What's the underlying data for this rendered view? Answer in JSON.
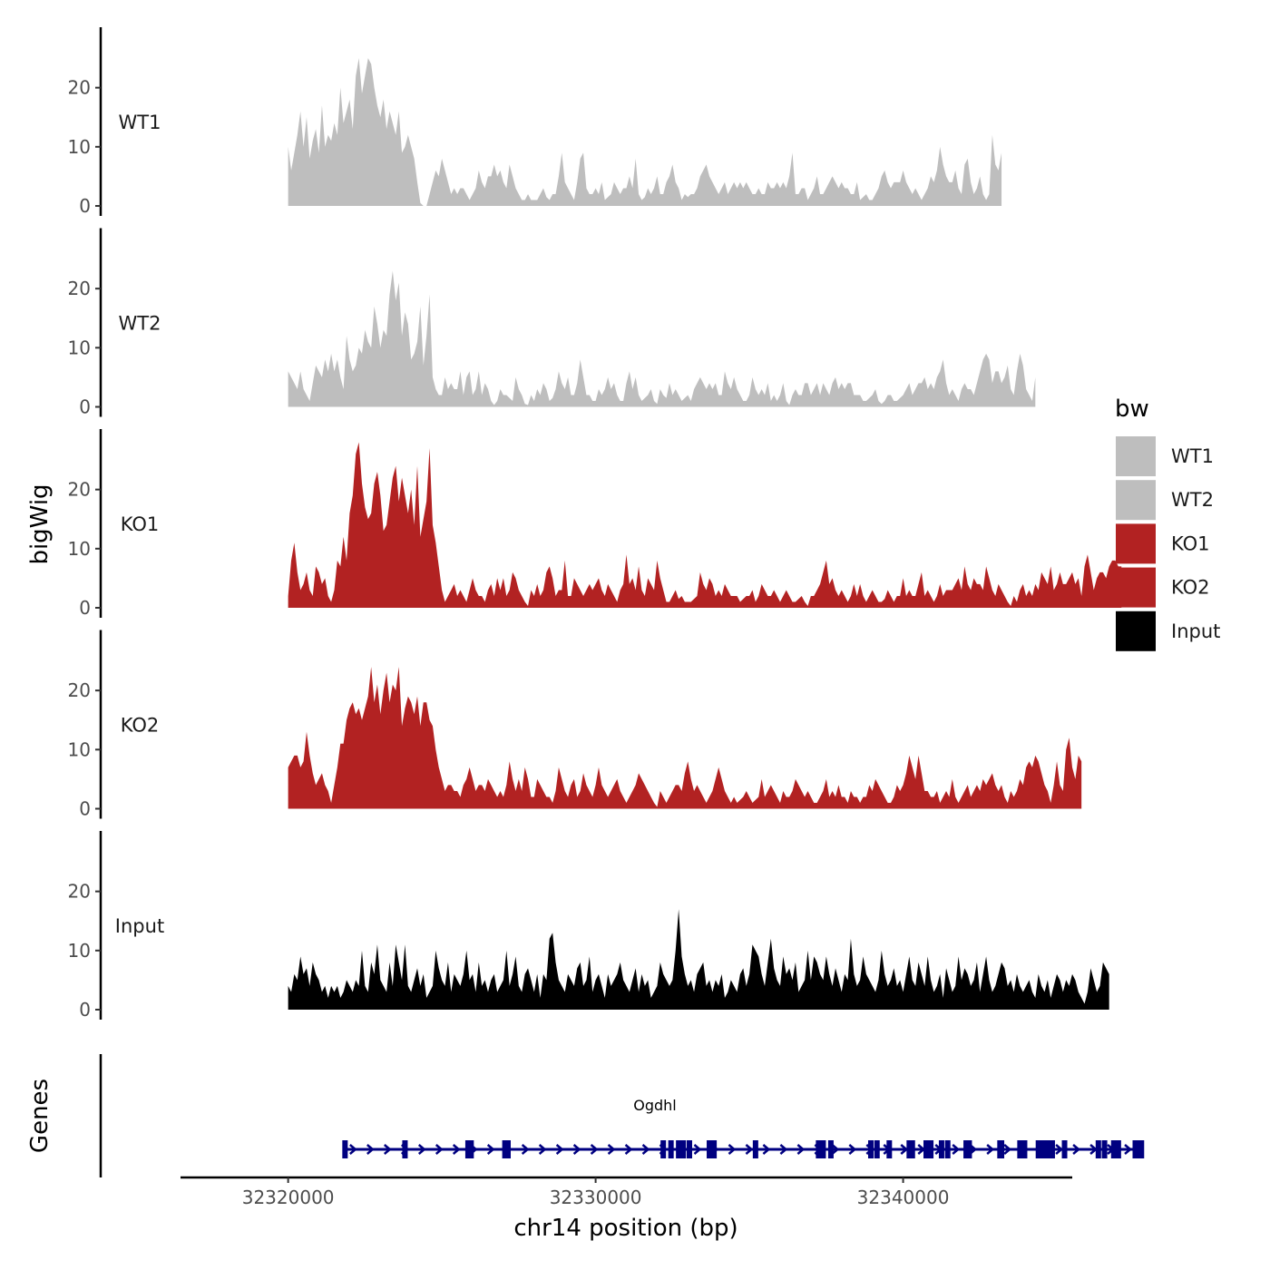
{
  "chart_data": {
    "type": "area",
    "xlabel": "chr14 position (bp)",
    "ylabel": "bigWig",
    "genes_label": "Genes",
    "xlim": [
      32316500,
      32345500
    ],
    "x_ticks": [
      32320000,
      32330000,
      32340000
    ],
    "x_tick_labels": [
      "32320000",
      "32330000",
      "32340000"
    ],
    "ylim": [
      0,
      29
    ],
    "y_ticks": [
      0,
      10,
      20
    ],
    "y_tick_labels": [
      "0",
      "10",
      "20"
    ],
    "series_x_start": 32320000,
    "series_x_step": 100,
    "legend": {
      "title": "bw",
      "items": [
        {
          "label": "WT1",
          "color": "#bebebe"
        },
        {
          "label": "WT2",
          "color": "#bebebe"
        },
        {
          "label": "KO1",
          "color": "#b22222"
        },
        {
          "label": "KO2",
          "color": "#b22222"
        },
        {
          "label": "Input",
          "color": "#000000"
        }
      ]
    },
    "series": [
      {
        "name": "WT1",
        "color": "#bebebe",
        "values": [
          10,
          6,
          9,
          12,
          16,
          10,
          15,
          8,
          11,
          13,
          9,
          17,
          10,
          12,
          11,
          14,
          12,
          20,
          14,
          16,
          18,
          13,
          22,
          25,
          19,
          22,
          25,
          24,
          20,
          17,
          15,
          18,
          13,
          16,
          14,
          12,
          16,
          9,
          10,
          12,
          10,
          8,
          4,
          0.5,
          0,
          0,
          2,
          4,
          6,
          5,
          8,
          6,
          4,
          2,
          3,
          2,
          3,
          3,
          2,
          1,
          2,
          3,
          6,
          4,
          3,
          5,
          5,
          7,
          5,
          6,
          4,
          3,
          7,
          5,
          3,
          2,
          1,
          1,
          2,
          1,
          1,
          1,
          2,
          3,
          1.5,
          1,
          2,
          2,
          5,
          9,
          4,
          3,
          2,
          1,
          4,
          8,
          9,
          3,
          2,
          2,
          3,
          2,
          4,
          1,
          1.5,
          2,
          4,
          3,
          2,
          3,
          3,
          5,
          3,
          8,
          2,
          1,
          1.5,
          3,
          2,
          3,
          5,
          2,
          2,
          4,
          5,
          7,
          4,
          3,
          1,
          2,
          1.5,
          2,
          2,
          3,
          5,
          6,
          7,
          5,
          4,
          3,
          2,
          3,
          4,
          2,
          3,
          4,
          3,
          4,
          3,
          4,
          3,
          2,
          2,
          3,
          2,
          2,
          4,
          3,
          3,
          4,
          3,
          4,
          3,
          5,
          9,
          2,
          2,
          3,
          3,
          1,
          2,
          3,
          5,
          2,
          2,
          3,
          4,
          5,
          4,
          3,
          4,
          3,
          3,
          2,
          2,
          4,
          1,
          1.5,
          2,
          1,
          1,
          2,
          3,
          5,
          6,
          4,
          3,
          4,
          4,
          4,
          6,
          4,
          3,
          2,
          3,
          2,
          1,
          2,
          3,
          5,
          4,
          6,
          10,
          7,
          5,
          4,
          4,
          6,
          3,
          2,
          7,
          8,
          4,
          2,
          3,
          5,
          2,
          1,
          2,
          12,
          7,
          6,
          9
        ]
      },
      {
        "name": "WT2",
        "color": "#bebebe",
        "values": [
          6,
          5,
          4,
          3,
          6,
          3,
          2,
          1,
          4,
          7,
          6,
          5,
          8,
          6,
          9,
          6,
          8,
          5,
          3,
          12,
          8,
          6,
          7,
          10,
          9,
          13,
          11,
          10,
          17,
          14,
          10,
          13,
          12,
          19,
          23,
          18,
          21,
          12,
          16,
          14,
          8,
          9,
          11,
          17,
          7,
          12,
          19,
          5,
          3,
          2,
          2,
          5,
          3,
          4,
          3,
          3,
          6,
          2,
          5,
          6,
          2,
          3,
          6,
          2,
          4,
          3,
          1,
          0.3,
          1,
          3,
          2,
          2,
          1.5,
          1,
          5,
          3,
          2,
          0.5,
          0.3,
          2,
          1,
          3,
          2,
          4,
          3,
          1,
          1.5,
          3,
          6,
          4,
          3,
          5,
          2,
          2,
          4,
          8,
          5,
          2,
          2,
          1,
          1,
          3,
          2,
          3,
          5,
          3,
          4,
          2,
          1,
          1,
          4,
          6,
          3,
          5,
          2,
          1,
          1.5,
          2,
          3,
          1,
          0.5,
          3,
          2,
          1.5,
          4,
          2,
          3,
          2,
          1,
          1.5,
          2,
          1,
          3,
          4,
          5,
          4,
          3,
          4,
          3,
          4,
          2,
          2,
          6,
          4,
          3,
          5,
          3,
          2,
          1,
          1,
          2,
          5,
          3,
          2,
          3,
          2,
          4,
          1,
          2,
          1,
          2,
          4,
          1,
          0.3,
          2,
          3,
          2,
          2,
          4,
          4,
          2,
          3,
          4,
          2,
          4,
          3,
          2,
          4,
          5,
          3,
          4,
          3,
          4,
          4,
          2,
          2,
          2,
          1,
          1,
          1.5,
          2,
          3,
          1,
          0.5,
          1,
          2,
          2,
          1,
          1,
          1.5,
          2,
          3,
          4,
          2,
          3,
          4,
          4,
          5,
          3,
          4,
          3,
          5,
          6,
          8,
          4,
          2,
          3,
          2,
          1,
          3,
          4,
          3,
          3,
          2,
          4,
          6,
          8,
          9,
          8,
          4,
          6,
          6,
          4,
          5,
          7,
          3,
          2,
          6,
          9,
          7,
          3,
          2,
          1,
          5
        ]
      },
      {
        "name": "KO1",
        "color": "#b22222",
        "values": [
          2,
          8,
          11,
          6,
          3,
          4,
          6,
          3,
          2,
          7,
          6,
          4,
          5,
          2,
          1,
          3,
          8,
          7,
          12,
          8,
          16,
          19,
          26,
          28,
          21,
          17,
          15,
          16,
          21,
          23,
          19,
          13,
          14,
          18,
          22,
          24,
          18,
          22,
          19,
          16,
          20,
          14,
          24,
          12,
          15,
          18,
          27,
          14,
          11,
          7,
          3,
          1,
          2,
          3,
          4,
          2,
          3,
          2,
          1,
          3,
          5,
          3,
          2,
          2,
          1,
          3,
          4,
          2,
          5,
          3,
          5,
          2,
          3,
          6,
          5,
          3,
          2,
          1,
          0.3,
          3,
          2,
          4,
          2,
          3,
          6,
          7,
          5,
          2,
          3,
          3,
          8,
          2,
          2,
          5,
          4,
          3,
          2,
          3,
          4,
          3,
          4,
          5,
          3,
          2,
          4,
          3,
          2,
          1,
          3,
          4,
          9,
          4,
          5,
          3,
          7,
          3,
          2,
          5,
          4,
          3,
          8,
          5,
          3,
          1,
          1,
          2,
          3,
          1.5,
          2,
          1,
          1,
          1,
          1.5,
          2,
          6,
          4,
          3,
          5,
          4,
          2,
          3,
          2,
          4,
          3,
          2,
          2,
          2,
          1,
          1.5,
          2,
          2,
          3,
          1,
          2,
          4,
          3,
          2,
          2,
          3,
          2,
          1,
          2,
          3,
          2,
          1,
          1,
          1.5,
          2,
          1,
          0.3,
          2,
          2,
          3,
          4,
          6,
          8,
          4,
          5,
          3,
          2,
          3,
          2,
          1,
          2,
          4,
          2,
          4,
          2,
          1,
          2,
          3,
          2,
          1,
          1,
          1.5,
          3,
          2,
          1,
          2,
          2,
          5,
          2,
          3,
          2,
          2,
          4,
          6,
          2,
          3,
          2,
          1,
          2,
          4,
          2,
          3,
          3,
          3,
          4,
          5,
          3,
          7,
          4,
          3,
          5,
          4,
          4,
          3,
          7,
          5,
          3,
          2,
          4,
          3,
          2,
          1,
          0.3,
          2,
          1,
          3,
          4,
          2,
          3,
          2,
          4,
          3,
          6,
          5,
          4,
          7,
          3,
          4,
          6,
          4,
          4,
          5,
          6,
          4,
          5,
          2,
          7,
          9,
          6,
          3,
          5,
          6,
          6,
          5,
          7,
          8,
          8,
          7,
          7
        ]
      },
      {
        "name": "KO2",
        "color": "#b22222",
        "values": [
          7,
          8,
          9,
          9,
          7,
          8,
          13,
          9,
          6,
          4,
          5,
          6,
          4,
          3,
          1,
          4,
          7,
          11,
          11,
          15,
          17,
          18,
          16,
          17,
          15,
          17,
          19,
          24,
          18,
          21,
          16,
          20,
          23,
          18,
          21,
          20,
          24,
          14,
          17,
          19,
          18,
          16,
          19,
          14,
          18,
          18,
          15,
          14,
          10,
          7,
          5,
          3,
          4,
          4,
          3,
          3,
          2,
          4,
          5,
          7,
          5,
          3,
          4,
          4,
          3,
          5,
          4,
          3,
          2,
          3,
          2,
          4,
          8,
          5,
          3,
          5,
          3,
          7,
          5,
          2,
          2,
          5,
          4,
          3,
          2,
          2,
          1,
          3,
          7,
          5,
          3,
          2,
          4,
          5,
          2,
          3,
          6,
          4,
          3,
          2,
          4,
          7,
          4,
          3,
          2,
          3,
          4,
          5,
          3,
          2,
          1,
          2,
          3,
          4,
          6,
          5,
          4,
          3,
          2,
          1,
          0.3,
          3,
          2,
          1,
          2,
          3,
          4,
          4,
          3,
          6,
          8,
          5,
          3,
          4,
          3,
          2,
          1,
          2,
          3,
          5,
          7,
          5,
          3,
          2,
          1,
          2,
          1,
          1.5,
          2,
          3,
          2,
          1,
          1.5,
          2,
          5,
          2,
          3,
          4,
          3,
          2,
          1,
          3,
          2,
          2,
          3,
          5,
          4,
          3,
          2,
          3,
          2,
          1,
          1,
          2,
          3,
          5,
          2,
          3,
          2,
          4,
          2,
          2,
          1,
          3,
          2,
          2,
          1,
          2,
          2,
          4,
          3,
          5,
          4,
          3,
          2,
          1,
          1,
          2,
          4,
          3,
          4,
          6,
          9,
          7,
          5,
          9,
          6,
          3,
          3,
          2,
          2,
          3,
          1,
          2,
          3,
          2,
          5,
          2,
          1,
          2,
          3,
          4,
          2,
          3,
          4,
          3,
          5,
          4,
          5,
          6,
          4,
          3,
          4,
          2,
          1,
          3,
          2,
          3,
          5,
          4,
          7,
          8,
          7,
          9,
          8,
          6,
          4,
          3,
          1,
          4,
          8,
          4,
          3,
          10,
          12,
          7,
          5,
          9,
          8
        ]
      },
      {
        "name": "Input",
        "color": "#000000",
        "values": [
          4,
          3,
          6,
          5,
          9,
          6,
          7,
          4,
          8,
          6,
          5,
          3,
          4,
          2,
          4,
          3,
          4,
          2,
          3,
          5,
          4,
          3,
          5,
          4,
          10,
          4,
          3,
          8,
          6,
          11,
          5,
          4,
          3,
          8,
          4,
          11,
          8,
          5,
          11,
          4,
          3,
          5,
          7,
          4,
          6,
          2,
          3,
          4,
          10,
          7,
          5,
          4,
          8,
          3,
          6,
          5,
          4,
          6,
          10,
          5,
          6,
          3,
          8,
          4,
          5,
          3,
          5,
          6,
          3,
          4,
          5,
          10,
          4,
          6,
          9,
          4,
          3,
          6,
          7,
          5,
          3,
          6,
          2,
          6,
          5,
          12,
          13,
          8,
          5,
          4,
          3,
          6,
          5,
          4,
          7,
          8,
          4,
          5,
          9,
          3,
          5,
          6,
          4,
          2,
          6,
          4,
          5,
          6,
          8,
          5,
          4,
          3,
          5,
          7,
          3,
          6,
          4,
          5,
          2,
          3,
          4,
          8,
          6,
          5,
          4,
          5,
          10,
          17,
          9,
          6,
          4,
          5,
          3,
          6,
          7,
          8,
          4,
          5,
          3,
          5,
          4,
          6,
          2,
          3,
          5,
          4,
          3,
          6,
          7,
          4,
          6,
          11,
          10,
          9,
          6,
          4,
          8,
          12,
          7,
          5,
          4,
          9,
          6,
          7,
          5,
          8,
          3,
          4,
          5,
          10,
          5,
          9,
          8,
          6,
          5,
          9,
          6,
          4,
          7,
          5,
          3,
          6,
          5,
          12,
          6,
          4,
          5,
          9,
          6,
          5,
          4,
          3,
          5,
          10,
          6,
          4,
          5,
          7,
          4,
          5,
          3,
          6,
          9,
          5,
          4,
          8,
          6,
          4,
          9,
          5,
          3,
          4,
          6,
          2,
          7,
          5,
          3,
          4,
          9,
          5,
          7,
          6,
          4,
          5,
          8,
          3,
          6,
          9,
          5,
          3,
          4,
          6,
          8,
          7,
          4,
          5,
          3,
          6,
          4,
          3,
          4,
          5,
          3,
          2,
          6,
          4,
          3,
          5,
          2,
          4,
          6,
          5,
          3,
          5,
          4,
          6,
          5,
          3,
          2,
          1,
          3,
          7,
          5,
          3,
          4,
          8,
          7,
          6
        ]
      }
    ],
    "gene": {
      "name": "Ogdhl",
      "color": "#000080",
      "start": 32321800,
      "end": 32347800,
      "exons": [
        32321850,
        32323800,
        32325850,
        32325950,
        32327050,
        32327150,
        32332200,
        32332450,
        32332700,
        32332850,
        32333050,
        32333700,
        32333850,
        32335200,
        32337250,
        32337400,
        32337650,
        32338950,
        32339150,
        32339550,
        32340200,
        32340300,
        32340750,
        32340900,
        32341250,
        32341450,
        32342050,
        32342150,
        32343150,
        32343200,
        32343800,
        32343950,
        32344400,
        32344550,
        32344700,
        32344850,
        32345250,
        32346350,
        32346550,
        32346850,
        32347000,
        32347550,
        32347650,
        32347750
      ]
    }
  }
}
